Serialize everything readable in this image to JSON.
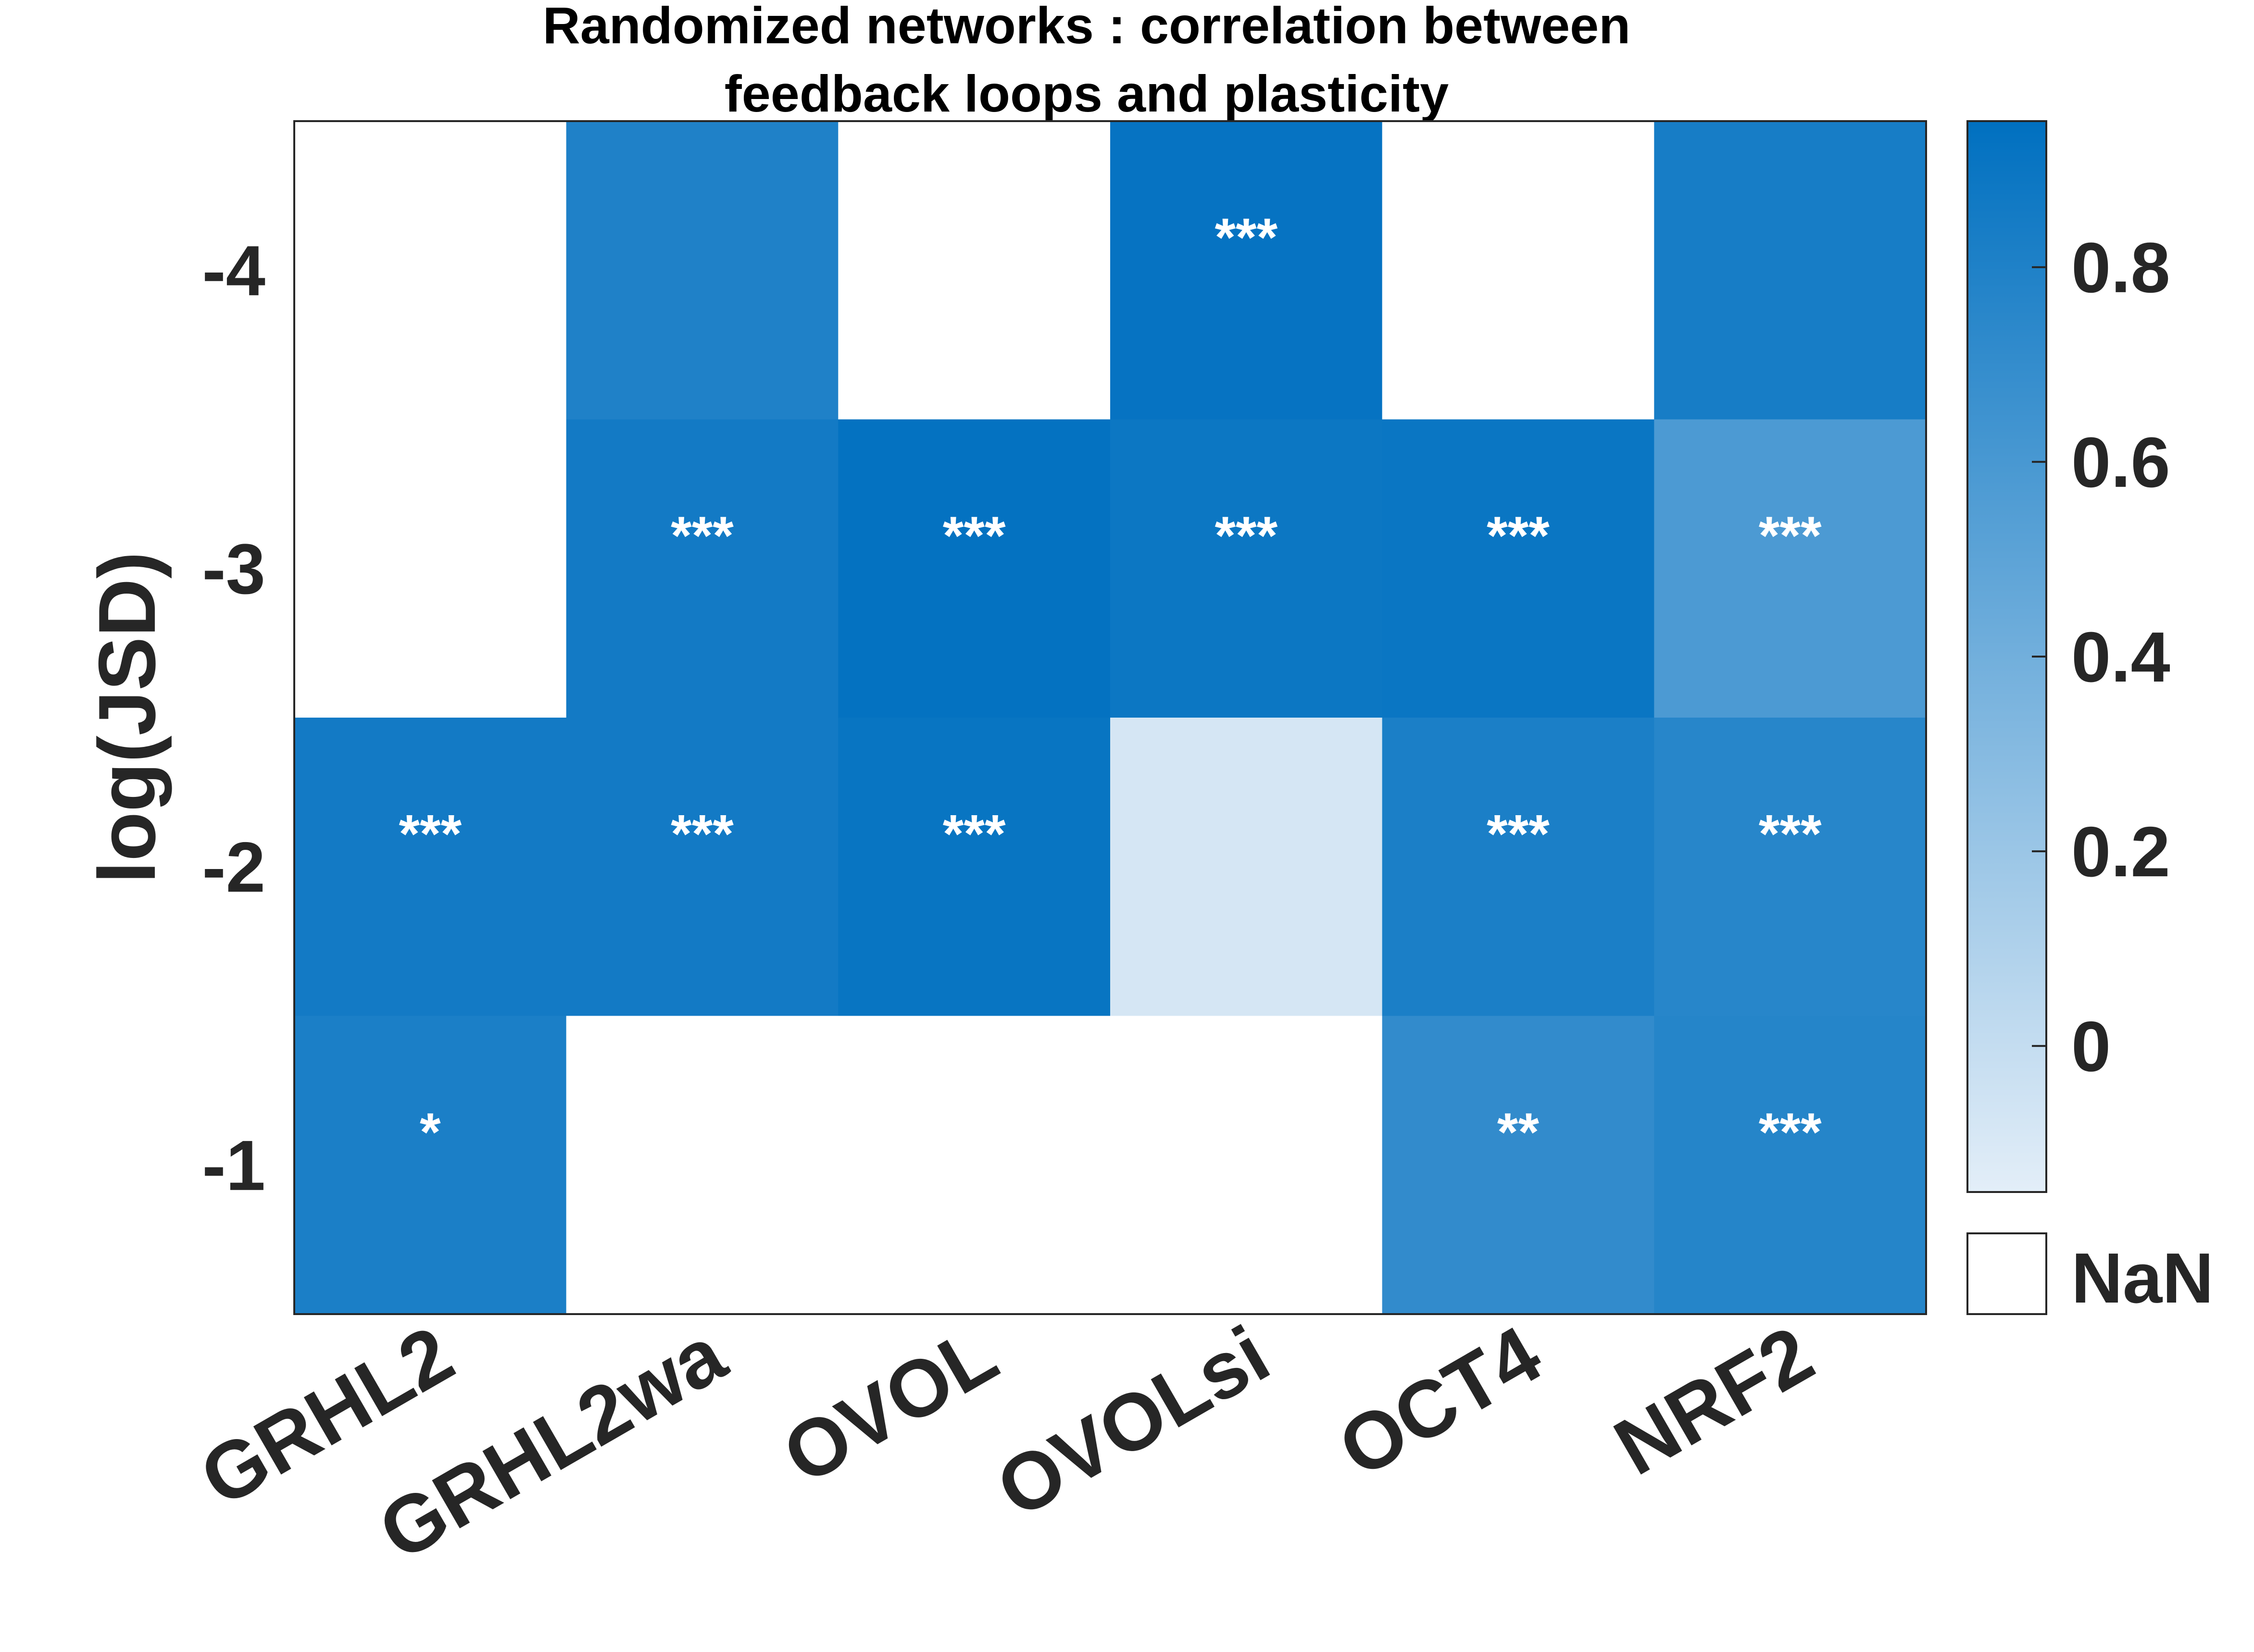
{
  "chart_data": {
    "type": "heatmap",
    "title": [
      "Randomized networks : correlation between",
      "feedback loops and plasticity"
    ],
    "ylabel": "log(JSD)",
    "xlabel": "",
    "x_categories": [
      "GRHL2",
      "GRHL2wa",
      "OVOL",
      "OVOLsi",
      "OCT4",
      "NRF2"
    ],
    "y_categories": [
      "-4",
      "-3",
      "-2",
      "-1"
    ],
    "values": [
      [
        null,
        0.8,
        null,
        0.92,
        null,
        0.84
      ],
      [
        null,
        0.86,
        0.93,
        0.89,
        0.9,
        0.58
      ],
      [
        0.86,
        0.86,
        0.91,
        -0.08,
        0.82,
        0.76
      ],
      [
        0.82,
        null,
        null,
        null,
        0.71,
        0.77
      ]
    ],
    "significance": [
      [
        "",
        "",
        "",
        "***",
        "",
        ""
      ],
      [
        "",
        "***",
        "***",
        "***",
        "***",
        "***"
      ],
      [
        "***",
        "***",
        "***",
        "",
        "***",
        "***"
      ],
      [
        "*",
        "",
        "",
        "",
        "**",
        "***"
      ]
    ],
    "colorbar": {
      "range": [
        -0.15,
        0.95
      ],
      "ticks": [
        0,
        0.2,
        0.4,
        0.6,
        0.8
      ],
      "tick_labels": [
        "0",
        "0.2",
        "0.4",
        "0.6",
        "0.8"
      ],
      "color_low": "#e3eef8",
      "color_high": "#0070c0"
    },
    "nan_label": "NaN",
    "nan_color": "#ffffff"
  }
}
